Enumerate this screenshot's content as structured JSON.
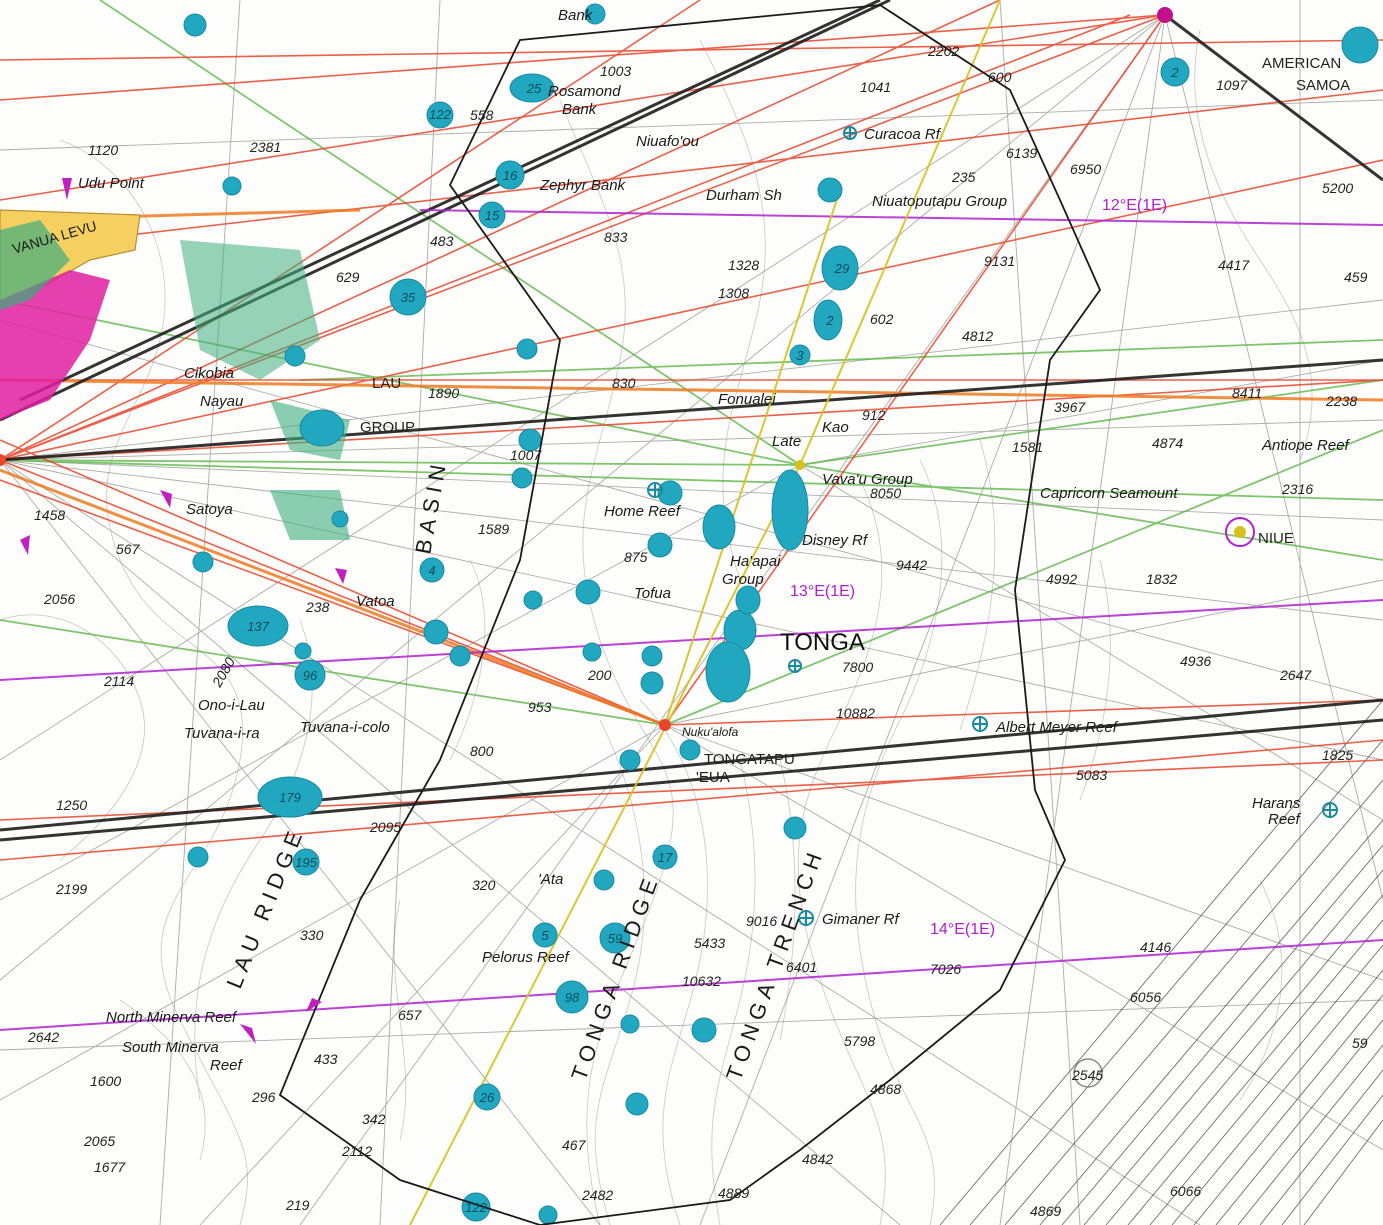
{
  "place_names": {
    "american_samoa_1": "AMERICAN",
    "american_samoa_2": "SAMOA",
    "vanua_levu": "VANUA LEVU",
    "udu_point": "Udu Point",
    "bank_top": "Bank",
    "rosamond_bank": "Rosamond",
    "rosamond_bank_2": "Bank",
    "zephyr_bank": "Zephyr Bank",
    "niuafoou": "Niuafo'ou",
    "curacoa_reef": "Curacoa Rf",
    "durham_shoal": "Durham Sh",
    "niuatoputapu_group": "Niuatoputapu Group",
    "lau_group_1": "LAU",
    "lau_group_2": "GROUP",
    "cikobia": "Cikobia",
    "nayau": "Nayau",
    "fonualei": "Fonualei",
    "late": "Late",
    "kao": "Kao",
    "vavau_group": "Vava'u Group",
    "capricorn_seamount": "Capricorn Seamount",
    "antiope_reef": "Antiope Reef",
    "niue": "NIUE",
    "home_reef": "Home Reef",
    "tofua": "Tofua",
    "haapai_group_1": "Ha'apai",
    "haapai_group_2": "Group",
    "disney_reef": "Disney Rf",
    "tonga": "TONGA",
    "vatoa": "Vatoa",
    "ono_i_lau": "Ono-i-Lau",
    "tuvana_i_ra": "Tuvana-i-ra",
    "tuvana_i_colo": "Tuvana-i-colo",
    "tongatapu": "TONGATAPU",
    "eua": "'EUA",
    "nukualofa": "Nuku'alofa",
    "albert_meyer_reef": "Albert Meyer Reef",
    "harans_reef_1": "Harans",
    "harans_reef_2": "Reef",
    "ata": "'Ata",
    "pelorus_reef": "Pelorus Reef",
    "gimaner_reef": "Gimaner Rf",
    "north_minerva_reef": "North Minerva Reef",
    "south_minerva_reef_1": "South Minerva",
    "south_minerva_reef_2": "Reef",
    "satoya": "Satoya",
    "lau_basin": "BASIN",
    "lau_ridge": "LAU RIDGE",
    "tonga_ridge": "TONGA RIDGE",
    "tonga_trench": "TONGA TRENCH"
  },
  "magnetic_variation": {
    "v12": "12°E(1E)",
    "v13": "13°E(1E)",
    "v14": "14°E(1E)"
  },
  "shoal_depths": [
    "25",
    "16",
    "15",
    "122",
    "35",
    "29",
    "2",
    "3",
    "137",
    "96",
    "179",
    "195",
    "59",
    "98",
    "26",
    "122",
    "17",
    "5",
    "4",
    "2"
  ],
  "soundings": {
    "s1120": "1120",
    "s2381": "2381",
    "s2202": "2202",
    "s1041": "1041",
    "s600": "600",
    "s1097": "1097",
    "s5200": "5200",
    "s6139": "6139",
    "s6950": "6950",
    "s235": "235",
    "s833": "833",
    "s1328": "1328",
    "s1308": "1308",
    "s9131": "9131",
    "s4417": "4417",
    "s459": "459",
    "s483": "483",
    "s629": "629",
    "s602": "602",
    "s4812": "4812",
    "s830": "830",
    "s1890": "1890",
    "s912": "912",
    "s3967": "3967",
    "s8411": "8411",
    "s2238": "2238",
    "s4874": "4874",
    "s1581": "1581",
    "s8050": "8050",
    "s2316": "2316",
    "s1589": "1589",
    "s875": "875",
    "s9442": "9442",
    "s4992": "4992",
    "s1832": "1832",
    "s2056": "2056",
    "s567": "567",
    "s1458": "1458",
    "s7800": "7800",
    "s4936": "4936",
    "s2647": "2647",
    "s2114": "2114",
    "s2080": "2080",
    "s953": "953",
    "s10882": "10882",
    "s800": "800",
    "s1250": "1250",
    "s2095": "2095",
    "s5083": "5083",
    "s1825": "1825",
    "s2199": "2199",
    "s320": "320",
    "s330": "330",
    "s9016": "9016",
    "s5433": "5433",
    "s4146": "4146",
    "s6401": "6401",
    "s7026": "7026",
    "s10632": "10632",
    "s6056": "6056",
    "s2642": "2642",
    "s657": "657",
    "s5798": "5798",
    "s433": "433",
    "s1600": "1600",
    "s2545": "2545",
    "s4868": "4868",
    "s2065": "2065",
    "s1677": "1677",
    "s2112": "2112",
    "s342": "342",
    "s467": "467",
    "s4842": "4842",
    "s219": "219",
    "s2482": "2482",
    "s4889": "4889",
    "s6066": "6066",
    "s4869": "4869",
    "s296": "296",
    "s200": "200",
    "s238": "238",
    "s1003": "1003",
    "s558": "558",
    "s1007": "1007",
    "s5200b": "59"
  },
  "colors": {
    "shoal": "#21a7c0",
    "shoal_dark": "#1a8aa0",
    "boundary": "#1a1a1a",
    "route_red": "#e8452a",
    "route_orange": "#f07a20",
    "route_green": "#5fb84a",
    "route_black": "#222222",
    "route_gray": "#6a6a6a",
    "route_magenta": "#b020d0",
    "route_yellow": "#d8c020",
    "contour": "#8a8a8a",
    "land_yellow": "#f5d060",
    "land_pink": "#e020a0",
    "land_green": "#3fae80"
  },
  "icons": [
    "reef-cross-icon",
    "airport-star-icon",
    "magenta-pin-icon"
  ]
}
